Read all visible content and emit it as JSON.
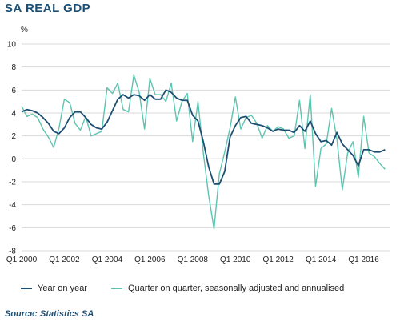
{
  "title": "SA REAL GDP",
  "source": "Source: Statistics SA",
  "colors": {
    "yoy": "#1d4f73",
    "qoq": "#5cc5b0",
    "title": "#1d4f73",
    "grid": "#d9d9d9"
  },
  "chart_data": {
    "type": "line",
    "title": "SA REAL GDP",
    "ylabel": "%",
    "xlabel": "",
    "ylim": [
      -8,
      10
    ],
    "yticks": [
      -8,
      -6,
      -4,
      -2,
      0,
      2,
      4,
      6,
      8,
      10
    ],
    "xlim": [
      2000.0,
      2017.25
    ],
    "xticks": [
      {
        "label": "Q1 2000",
        "x": 2000.0
      },
      {
        "label": "Q1 2002",
        "x": 2002.0
      },
      {
        "label": "Q1 2004",
        "x": 2004.0
      },
      {
        "label": "Q1 2006",
        "x": 2006.0
      },
      {
        "label": "Q1 2008",
        "x": 2008.0
      },
      {
        "label": "Q1 2010",
        "x": 2010.0
      },
      {
        "label": "Q1 2012",
        "x": 2012.0
      },
      {
        "label": "Q1 2014",
        "x": 2014.0
      },
      {
        "label": "Q1 2016",
        "x": 2016.0
      }
    ],
    "grid": true,
    "legend_position": "bottom",
    "series": [
      {
        "name": "Year on year",
        "x": [
          2000.0,
          2000.25,
          2000.5,
          2000.75,
          2001.0,
          2001.25,
          2001.5,
          2001.75,
          2002.0,
          2002.25,
          2002.5,
          2002.75,
          2003.0,
          2003.25,
          2003.5,
          2003.75,
          2004.0,
          2004.25,
          2004.5,
          2004.75,
          2005.0,
          2005.25,
          2005.5,
          2005.75,
          2006.0,
          2006.25,
          2006.5,
          2006.75,
          2007.0,
          2007.25,
          2007.5,
          2007.75,
          2008.0,
          2008.25,
          2008.5,
          2008.75,
          2009.0,
          2009.25,
          2009.5,
          2009.75,
          2010.0,
          2010.25,
          2010.5,
          2010.75,
          2011.0,
          2011.25,
          2011.5,
          2011.75,
          2012.0,
          2012.25,
          2012.5,
          2012.75,
          2013.0,
          2013.25,
          2013.5,
          2013.75,
          2014.0,
          2014.25,
          2014.5,
          2014.75,
          2015.0,
          2015.25,
          2015.5,
          2015.75,
          2016.0,
          2016.25,
          2016.5,
          2016.75,
          2017.0
        ],
        "values": [
          4.1,
          4.3,
          4.2,
          4.0,
          3.6,
          3.1,
          2.4,
          2.2,
          2.7,
          3.6,
          4.1,
          4.1,
          3.6,
          3.0,
          2.7,
          2.6,
          3.2,
          4.2,
          5.2,
          5.6,
          5.3,
          5.6,
          5.5,
          5.1,
          5.6,
          5.2,
          5.2,
          6.0,
          5.8,
          5.3,
          5.1,
          5.1,
          3.8,
          3.3,
          1.5,
          -0.7,
          -2.2,
          -2.2,
          -1.1,
          1.9,
          2.9,
          3.6,
          3.7,
          3.1,
          3.0,
          2.9,
          2.7,
          2.4,
          2.6,
          2.5,
          2.5,
          2.3,
          2.9,
          2.4,
          3.3,
          2.2,
          1.5,
          1.6,
          1.2,
          2.3,
          1.3,
          0.8,
          0.3,
          -0.6,
          0.8,
          0.8,
          0.6,
          0.6,
          0.8
        ]
      },
      {
        "name": "Quarter on quarter, seasonally adjusted and annualised",
        "x": [
          2000.0,
          2000.25,
          2000.5,
          2000.75,
          2001.0,
          2001.25,
          2001.5,
          2001.75,
          2002.0,
          2002.25,
          2002.5,
          2002.75,
          2003.0,
          2003.25,
          2003.5,
          2003.75,
          2004.0,
          2004.25,
          2004.5,
          2004.75,
          2005.0,
          2005.25,
          2005.5,
          2005.75,
          2006.0,
          2006.25,
          2006.5,
          2006.75,
          2007.0,
          2007.25,
          2007.5,
          2007.75,
          2008.0,
          2008.25,
          2008.5,
          2008.75,
          2009.0,
          2009.25,
          2009.5,
          2009.75,
          2010.0,
          2010.25,
          2010.5,
          2010.75,
          2011.0,
          2011.25,
          2011.5,
          2011.75,
          2012.0,
          2012.25,
          2012.5,
          2012.75,
          2013.0,
          2013.25,
          2013.5,
          2013.75,
          2014.0,
          2014.25,
          2014.5,
          2014.75,
          2015.0,
          2015.25,
          2015.5,
          2015.75,
          2016.0,
          2016.25,
          2016.5,
          2016.75,
          2017.0
        ],
        "values": [
          4.6,
          3.7,
          3.9,
          3.6,
          2.6,
          1.9,
          1.0,
          2.7,
          5.2,
          4.9,
          3.1,
          2.5,
          3.7,
          2.0,
          2.2,
          2.4,
          6.2,
          5.7,
          6.6,
          4.3,
          4.1,
          7.3,
          5.8,
          2.6,
          7.0,
          5.6,
          5.6,
          5.0,
          6.6,
          3.3,
          5.0,
          5.7,
          1.5,
          5.0,
          0.5,
          -3.2,
          -6.1,
          -1.3,
          0.6,
          2.7,
          5.4,
          2.6,
          3.6,
          3.8,
          3.1,
          1.8,
          2.9,
          2.4,
          2.8,
          2.6,
          1.8,
          2.0,
          5.1,
          0.9,
          5.6,
          -2.4,
          0.9,
          1.3,
          4.4,
          1.7,
          -2.7,
          0.5,
          1.5,
          -1.6,
          3.7,
          0.5,
          0.2,
          -0.4,
          -0.9
        ]
      }
    ]
  }
}
